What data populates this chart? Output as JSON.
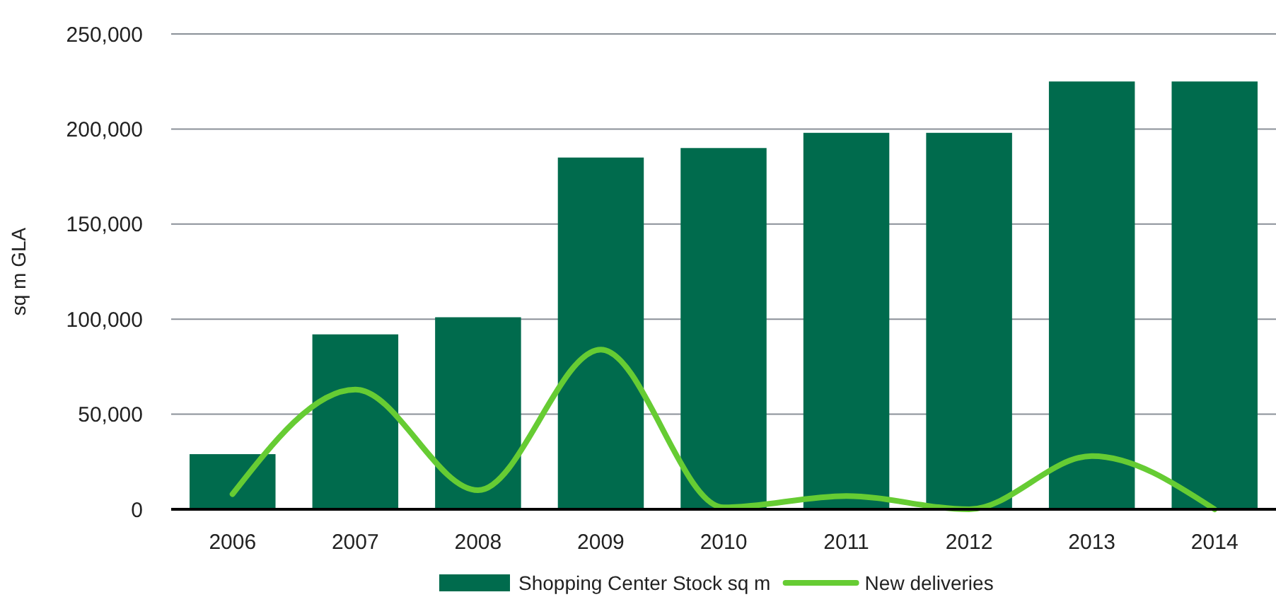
{
  "chart_data": {
    "type": "bar",
    "ylabel": "sq m GLA",
    "categories": [
      "2006",
      "2007",
      "2008",
      "2009",
      "2010",
      "2011",
      "2012",
      "2013",
      "2014"
    ],
    "series": [
      {
        "name": "Shopping Center Stock sq m",
        "color": "#006b4d",
        "values": [
          29000,
          92000,
          101000,
          185000,
          190000,
          198000,
          198000,
          225000,
          225000
        ]
      },
      {
        "name": "New deliveries",
        "type": "line",
        "color": "#66cc33",
        "values": [
          8000,
          63000,
          10000,
          84000,
          1000,
          7000,
          0,
          28000,
          0
        ]
      }
    ],
    "ylim": [
      0,
      250000
    ],
    "yticks": [
      {
        "value": 0,
        "label": "0"
      },
      {
        "value": 50000,
        "label": "50,000"
      },
      {
        "value": 100000,
        "label": "100,000"
      },
      {
        "value": 150000,
        "label": "150,000"
      },
      {
        "value": 200000,
        "label": "200,000"
      },
      {
        "value": 250000,
        "label": "250,000"
      }
    ],
    "grid": "y",
    "legend": "bottom",
    "marker": "none"
  }
}
